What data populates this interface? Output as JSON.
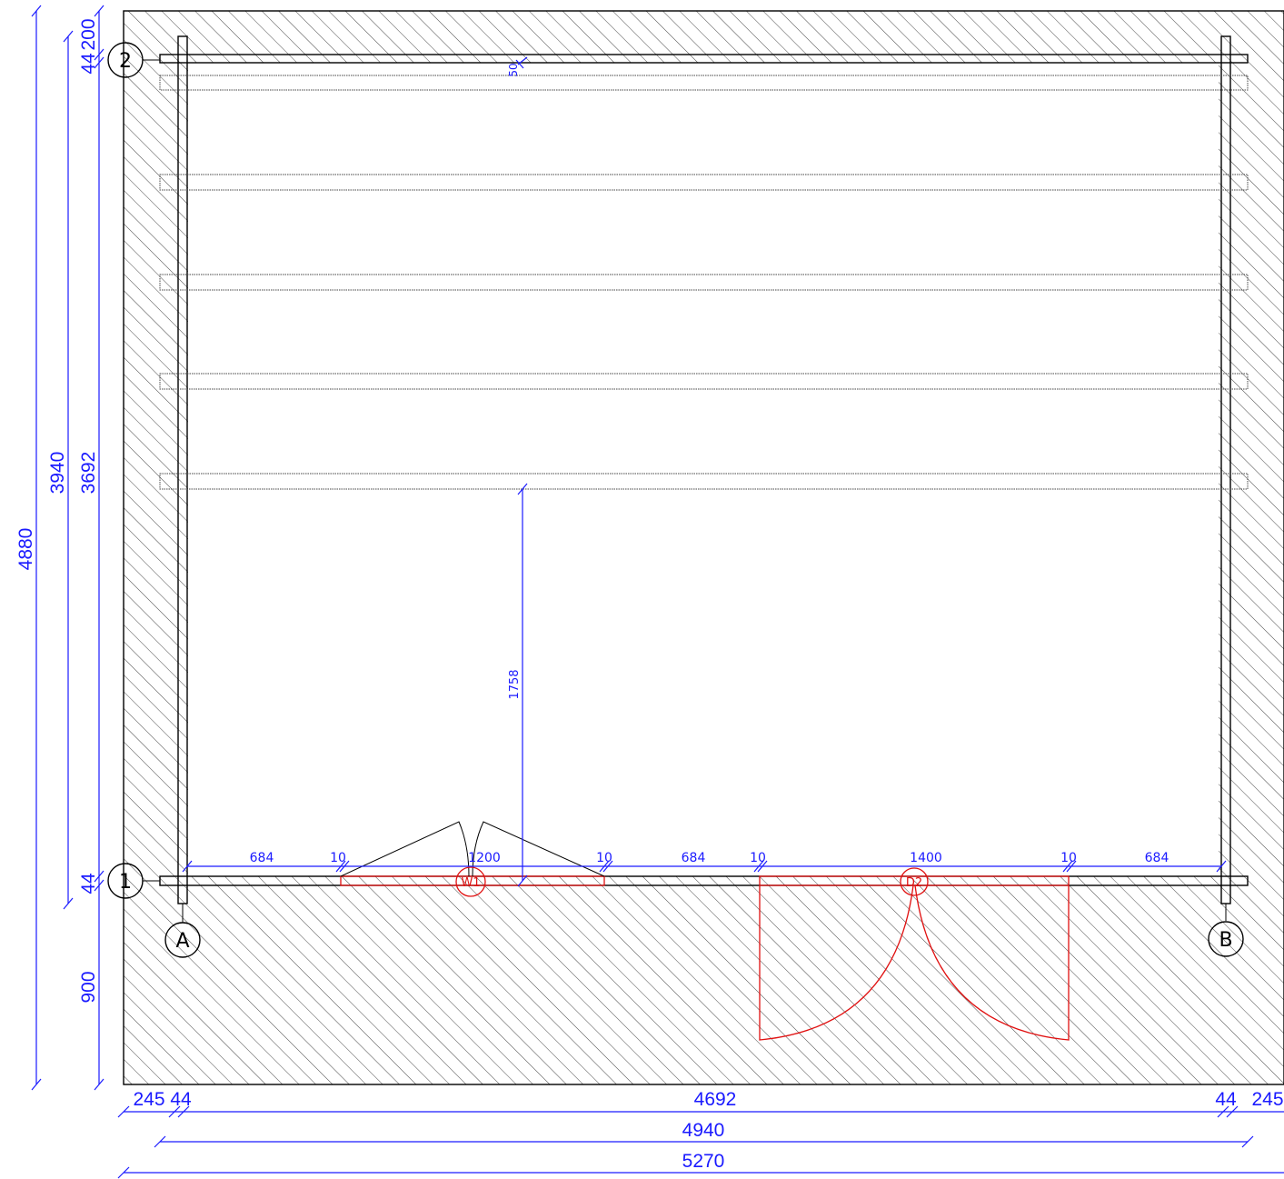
{
  "grid_labels": {
    "row_top": "2",
    "row_bottom": "1",
    "col_left": "A",
    "col_right": "B"
  },
  "openings": {
    "window": "W1",
    "door": "D2"
  },
  "dims": {
    "top_offset": "200",
    "top_wall": "44",
    "right_wall_top": "44",
    "left_inner": "3692",
    "left_axis": "3940",
    "left_total": "4880",
    "bottom_wall": "44",
    "deck": "900",
    "board_gap": "50",
    "inner_height": "1758",
    "bottom_left_overhang": "245",
    "bottom_left_wall": "44",
    "bottom_inner": "4692",
    "bottom_right_wall": "44",
    "bottom_right_overhang": "245",
    "axis_width": "4940",
    "total_width": "5270",
    "front_seg1": "684",
    "front_gap1": "10",
    "window_width": "1200",
    "front_gap2": "10",
    "front_seg2": "684",
    "front_gap3": "10",
    "door_width": "1400",
    "front_gap4": "10",
    "front_seg3": "684"
  },
  "colors": {
    "dimension": "#1a1aff",
    "opening": "#e01010",
    "line": "#000000"
  }
}
